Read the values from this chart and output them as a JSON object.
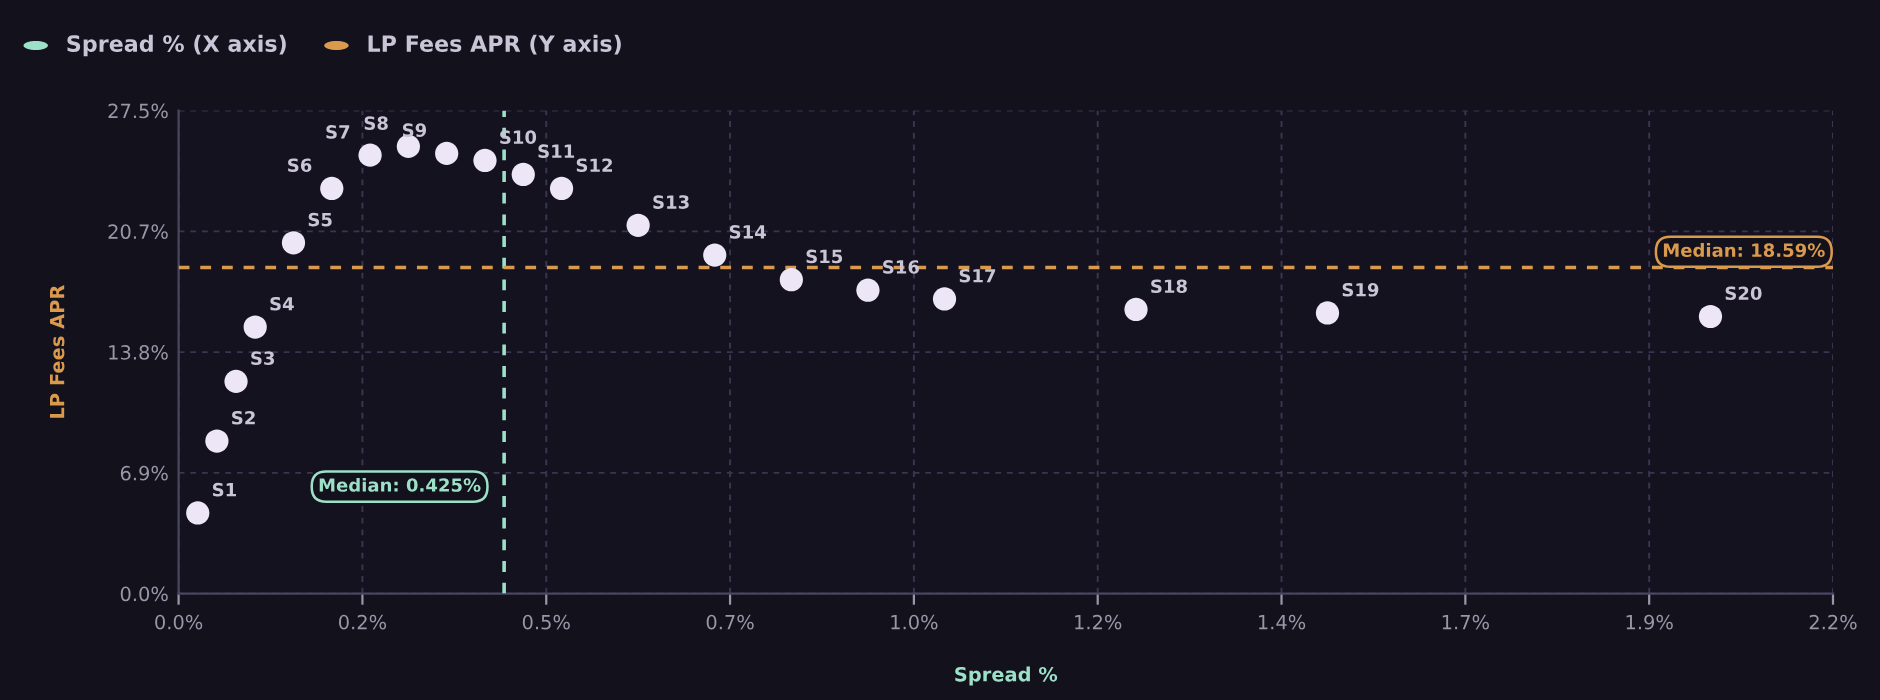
{
  "chart_data": {
    "type": "scatter",
    "x": [
      0.025,
      0.05,
      0.075,
      0.1,
      0.15,
      0.2,
      0.25,
      0.3,
      0.35,
      0.4,
      0.45,
      0.5,
      0.6,
      0.7,
      0.8,
      0.9,
      1.0,
      1.25,
      1.5,
      2.0
    ],
    "series": [
      {
        "color": "#ece6f7",
        "values": [
          4.6,
          8.7,
          12.1,
          15.2,
          20.0,
          23.1,
          25.0,
          25.5,
          25.1,
          24.7,
          23.9,
          23.1,
          21.0,
          19.3,
          17.9,
          17.3,
          16.8,
          16.2,
          16.0,
          15.8
        ]
      }
    ],
    "xlabel": "Spread %",
    "ylabel": "LP Fees APR",
    "xlim": [
      0,
      2.16
    ],
    "ylim": [
      0,
      27.54
    ],
    "xticks": [
      {
        "value": 0,
        "label": "0.0%"
      },
      {
        "value": 0.24,
        "label": "0.2%"
      },
      {
        "value": 0.48,
        "label": "0.5%"
      },
      {
        "value": 0.72,
        "label": "0.7%"
      },
      {
        "value": 0.96,
        "label": "1.0%"
      },
      {
        "value": 1.2,
        "label": "1.2%"
      },
      {
        "value": 1.44,
        "label": "1.4%"
      },
      {
        "value": 1.68,
        "label": "1.7%"
      },
      {
        "value": 1.92,
        "label": "1.9%"
      },
      {
        "value": 2.16,
        "label": "2.2%"
      }
    ],
    "yticks": [
      {
        "value": 0,
        "label": "0.0%"
      },
      {
        "value": 6.885,
        "label": "6.9%"
      },
      {
        "value": 13.77,
        "label": "13.8%"
      },
      {
        "value": 20.655,
        "label": "20.7%"
      },
      {
        "value": 27.54,
        "label": "27.5%"
      }
    ],
    "grid": true,
    "marker": "circle",
    "ref_lines": [
      {
        "axis": "x",
        "value": 0.425,
        "label": "Median: 0.425%",
        "color": "#9de0c8",
        "line_style": "dashed"
      },
      {
        "axis": "y",
        "value": 18.59,
        "label": "Median: 18.59%",
        "color": "#d99a4e",
        "line_style": "dashed"
      }
    ],
    "annotations": [
      "Spread % (X axis)",
      "LP Fees APR (Y axis)",
      {
        "text": "S1",
        "x": 0.025,
        "y": 4.6
      },
      {
        "text": "S2",
        "x": 0.05,
        "y": 8.7
      },
      {
        "text": "S3",
        "x": 0.075,
        "y": 12.1
      },
      {
        "text": "S4",
        "x": 0.1,
        "y": 15.2
      },
      {
        "text": "S5",
        "x": 0.15,
        "y": 20.0
      },
      {
        "text": "S6",
        "x": 0.2,
        "y": 23.1
      },
      {
        "text": "S7",
        "x": 0.25,
        "y": 25.0
      },
      {
        "text": "S8",
        "x": 0.3,
        "y": 25.5
      },
      {
        "text": "S9",
        "x": 0.35,
        "y": 25.1
      },
      {
        "text": "S10",
        "x": 0.4,
        "y": 24.7
      },
      {
        "text": "S11",
        "x": 0.45,
        "y": 23.9
      },
      {
        "text": "S12",
        "x": 0.5,
        "y": 23.1
      },
      {
        "text": "S13",
        "x": 0.6,
        "y": 21.0
      },
      {
        "text": "S14",
        "x": 0.7,
        "y": 19.3
      },
      {
        "text": "S15",
        "x": 0.8,
        "y": 17.9
      },
      {
        "text": "S16",
        "x": 0.9,
        "y": 17.3
      },
      {
        "text": "S17",
        "x": 1.0,
        "y": 16.8
      },
      {
        "text": "S18",
        "x": 1.25,
        "y": 16.2
      },
      {
        "text": "S19",
        "x": 1.5,
        "y": 16.0
      },
      {
        "text": "S20",
        "x": 2.0,
        "y": 15.8
      }
    ]
  }
}
